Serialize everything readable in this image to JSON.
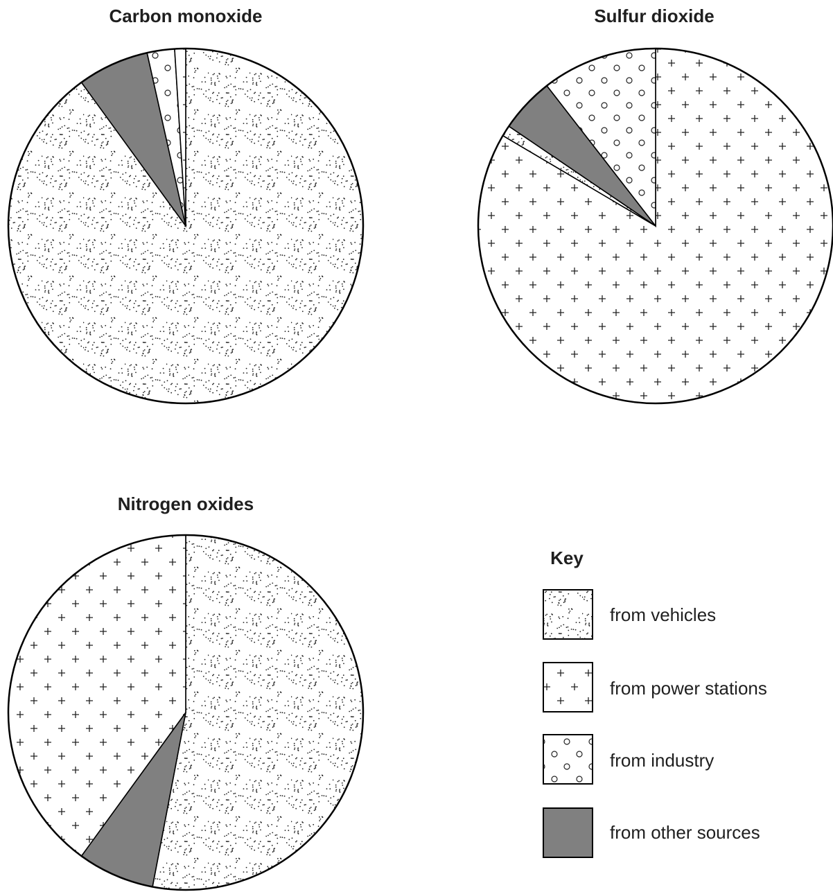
{
  "colors": {
    "outline": "#000000",
    "dots": "#222222",
    "other_fill": "#808080",
    "background": "#ffffff"
  },
  "key": {
    "title": "Key",
    "items": [
      {
        "id": "vehicles",
        "label": "from vehicles",
        "pattern": "dots"
      },
      {
        "id": "power",
        "label": "from power stations",
        "pattern": "plus"
      },
      {
        "id": "industry",
        "label": "from industry",
        "pattern": "circles"
      },
      {
        "id": "other",
        "label": "from other sources",
        "pattern": "grey"
      }
    ]
  },
  "chart_data": [
    {
      "type": "pie",
      "title": "Carbon monoxide",
      "unit": "%",
      "slices": [
        {
          "category": "vehicles",
          "value": 90
        },
        {
          "category": "other",
          "value": 6.5
        },
        {
          "category": "industry",
          "value": 2.5
        },
        {
          "category": "power",
          "value": 1
        }
      ]
    },
    {
      "type": "pie",
      "title": "Sulfur dioxide",
      "unit": "%",
      "slices": [
        {
          "category": "power",
          "value": 83.5
        },
        {
          "category": "vehicles",
          "value": 1
        },
        {
          "category": "other",
          "value": 5
        },
        {
          "category": "industry",
          "value": 10.5
        }
      ]
    },
    {
      "type": "pie",
      "title": "Nitrogen oxides",
      "unit": "%",
      "slices": [
        {
          "category": "vehicles",
          "value": 53
        },
        {
          "category": "other",
          "value": 7
        },
        {
          "category": "power",
          "value": 40
        }
      ]
    }
  ]
}
